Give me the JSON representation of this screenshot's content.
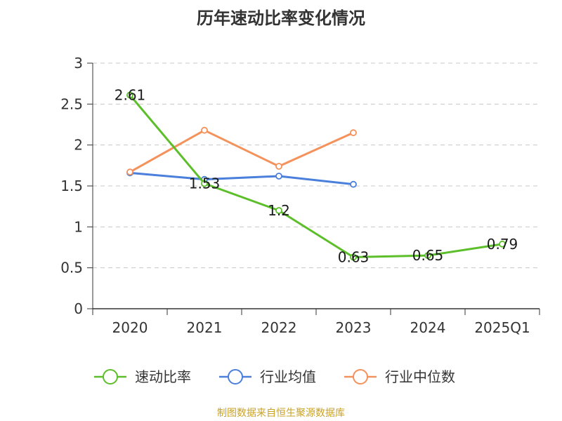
{
  "chart_data": {
    "type": "line",
    "title": "历年速动比率变化情况",
    "categories": [
      "2020",
      "2021",
      "2022",
      "2023",
      "2024",
      "2025Q1"
    ],
    "ylim": [
      0,
      3
    ],
    "yticks": [
      0,
      0.5,
      1,
      1.5,
      2,
      2.5,
      3
    ],
    "ytick_labels": [
      "0",
      "0.5",
      "1",
      "1.5",
      "2",
      "2.5",
      "3"
    ],
    "grid": true,
    "legend_position": "bottom",
    "series": [
      {
        "name": "速动比率",
        "color": "#5cbf2a",
        "values": [
          2.61,
          1.53,
          1.2,
          0.63,
          0.65,
          0.79
        ],
        "labels": [
          "2.61",
          "1.53",
          "1.2",
          "0.63",
          "0.65",
          "0.79"
        ]
      },
      {
        "name": "行业均值",
        "color": "#4a7fdb",
        "values": [
          1.66,
          1.58,
          1.62,
          1.52,
          null,
          null
        ]
      },
      {
        "name": "行业中位数",
        "color": "#f5915a",
        "values": [
          1.67,
          2.18,
          1.74,
          2.15,
          null,
          null
        ]
      }
    ]
  },
  "footer": {
    "source": "制图数据来自恒生聚源数据库"
  }
}
